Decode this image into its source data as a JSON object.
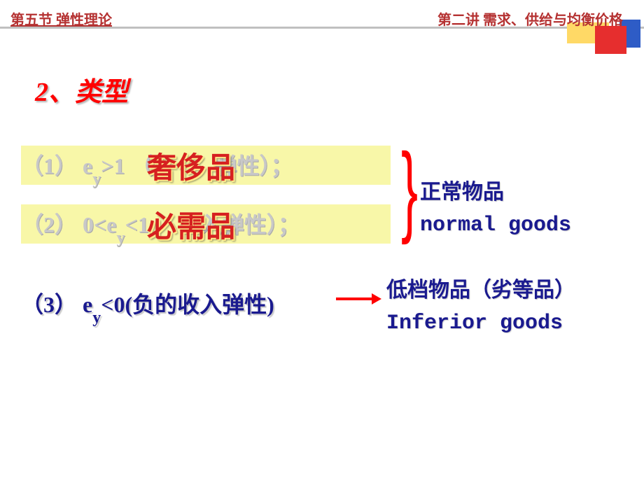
{
  "header": {
    "left": "第五节    弹性理论",
    "right": "第二讲 需求、供给与均衡价格"
  },
  "colors": {
    "header_text": "#b53232",
    "section_title": "#ff0000",
    "highlight_bg": "#f8f7a8",
    "faded_text": "#c8c8c8",
    "emphasis_red": "#d62020",
    "body_blue": "#1a1a8f",
    "arrow": "#ff0000",
    "deco_red": "#e62e2e",
    "deco_yellow": "#ffd966",
    "deco_blue": "#2e5cc6"
  },
  "section_title": "2、类型",
  "items": {
    "item1": {
      "faded": "（1） e >1 （           弹性）；",
      "emphasis": "奢侈品"
    },
    "item2": {
      "faded": "（2）  0<e <1           入弹性）；",
      "emphasis": "必需品"
    },
    "item3": "（3）  e <0(负的收入弹性)"
  },
  "labels": {
    "normal_cn": "正常物品",
    "normal_en": "normal goods",
    "inferior_cn": "低档物品（劣等品）",
    "inferior_en": "Inferior goods"
  },
  "subscript": "y"
}
